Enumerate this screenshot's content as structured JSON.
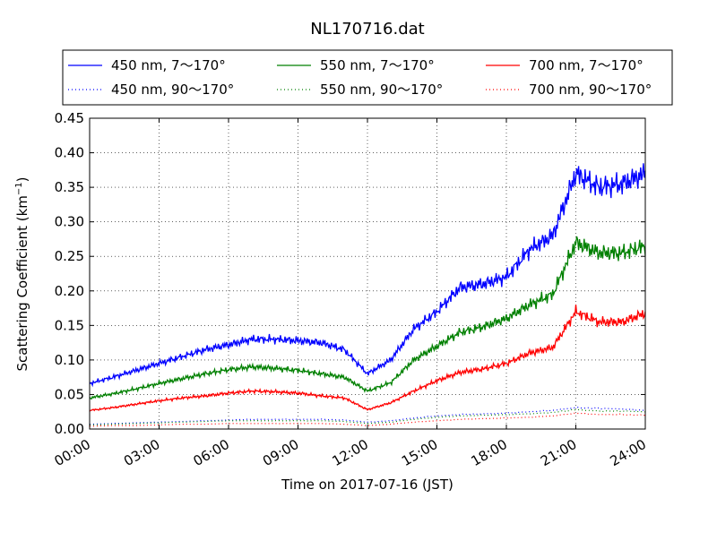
{
  "chart_data": {
    "type": "line",
    "title": "NL170716.dat",
    "xlabel": "Time on 2017-07-16 (JST)",
    "ylabel_main": "Scattering Coefficient (km",
    "ylabel_exp": "−1",
    "ylabel_close": ")",
    "xlim": [
      0,
      24
    ],
    "ylim": [
      0,
      0.45
    ],
    "x_ticks": [
      0,
      3,
      6,
      9,
      12,
      15,
      18,
      21,
      24
    ],
    "x_tick_labels": [
      "00:00",
      "03:00",
      "06:00",
      "09:00",
      "12:00",
      "15:00",
      "18:00",
      "21:00",
      "24:00"
    ],
    "y_ticks": [
      0,
      0.05,
      0.1,
      0.15,
      0.2,
      0.25,
      0.3,
      0.35,
      0.4,
      0.45
    ],
    "y_tick_labels": [
      "0.00",
      "0.05",
      "0.10",
      "0.15",
      "0.20",
      "0.25",
      "0.30",
      "0.35",
      "0.40",
      "0.45"
    ],
    "grid": true,
    "legend_position": "top, outside plot, 3 columns",
    "x": [
      0,
      1,
      2,
      3,
      4,
      5,
      6,
      7,
      8,
      9,
      10,
      11,
      12,
      13,
      14,
      15,
      16,
      17,
      18,
      19,
      20,
      21,
      22,
      23,
      24
    ],
    "series": [
      {
        "name": "450 nm, 7～170°",
        "color": "#0000ff",
        "style": "solid",
        "values": [
          0.066,
          0.075,
          0.085,
          0.095,
          0.105,
          0.115,
          0.122,
          0.13,
          0.13,
          0.128,
          0.125,
          0.115,
          0.08,
          0.1,
          0.145,
          0.17,
          0.205,
          0.21,
          0.22,
          0.26,
          0.28,
          0.37,
          0.35,
          0.355,
          0.37
        ]
      },
      {
        "name": "550 nm, 7～170°",
        "color": "#008000",
        "style": "solid",
        "values": [
          0.045,
          0.051,
          0.058,
          0.066,
          0.073,
          0.08,
          0.086,
          0.09,
          0.088,
          0.085,
          0.08,
          0.075,
          0.055,
          0.067,
          0.1,
          0.12,
          0.14,
          0.148,
          0.16,
          0.18,
          0.195,
          0.27,
          0.255,
          0.255,
          0.265
        ]
      },
      {
        "name": "700 nm, 7～170°",
        "color": "#ff0000",
        "style": "solid",
        "values": [
          0.027,
          0.031,
          0.036,
          0.041,
          0.045,
          0.048,
          0.052,
          0.055,
          0.054,
          0.052,
          0.048,
          0.045,
          0.028,
          0.038,
          0.055,
          0.07,
          0.082,
          0.087,
          0.095,
          0.11,
          0.118,
          0.17,
          0.155,
          0.155,
          0.168
        ]
      },
      {
        "name": "450 nm, 90～170°",
        "color": "#0000ff",
        "style": "dotted",
        "values": [
          0.007,
          0.008,
          0.009,
          0.01,
          0.011,
          0.012,
          0.013,
          0.014,
          0.014,
          0.014,
          0.014,
          0.013,
          0.01,
          0.012,
          0.016,
          0.019,
          0.021,
          0.022,
          0.023,
          0.025,
          0.027,
          0.031,
          0.03,
          0.029,
          0.027
        ]
      },
      {
        "name": "550 nm, 90～170°",
        "color": "#008000",
        "style": "dotted",
        "values": [
          0.006,
          0.007,
          0.008,
          0.009,
          0.01,
          0.011,
          0.012,
          0.012,
          0.012,
          0.012,
          0.012,
          0.011,
          0.008,
          0.01,
          0.014,
          0.017,
          0.019,
          0.02,
          0.021,
          0.022,
          0.024,
          0.028,
          0.026,
          0.026,
          0.025
        ]
      },
      {
        "name": "700 nm, 90～170°",
        "color": "#ff0000",
        "style": "dotted",
        "values": [
          0.004,
          0.005,
          0.005,
          0.006,
          0.007,
          0.007,
          0.008,
          0.008,
          0.008,
          0.008,
          0.008,
          0.007,
          0.005,
          0.007,
          0.01,
          0.012,
          0.014,
          0.015,
          0.016,
          0.017,
          0.019,
          0.023,
          0.021,
          0.021,
          0.02
        ]
      }
    ]
  }
}
